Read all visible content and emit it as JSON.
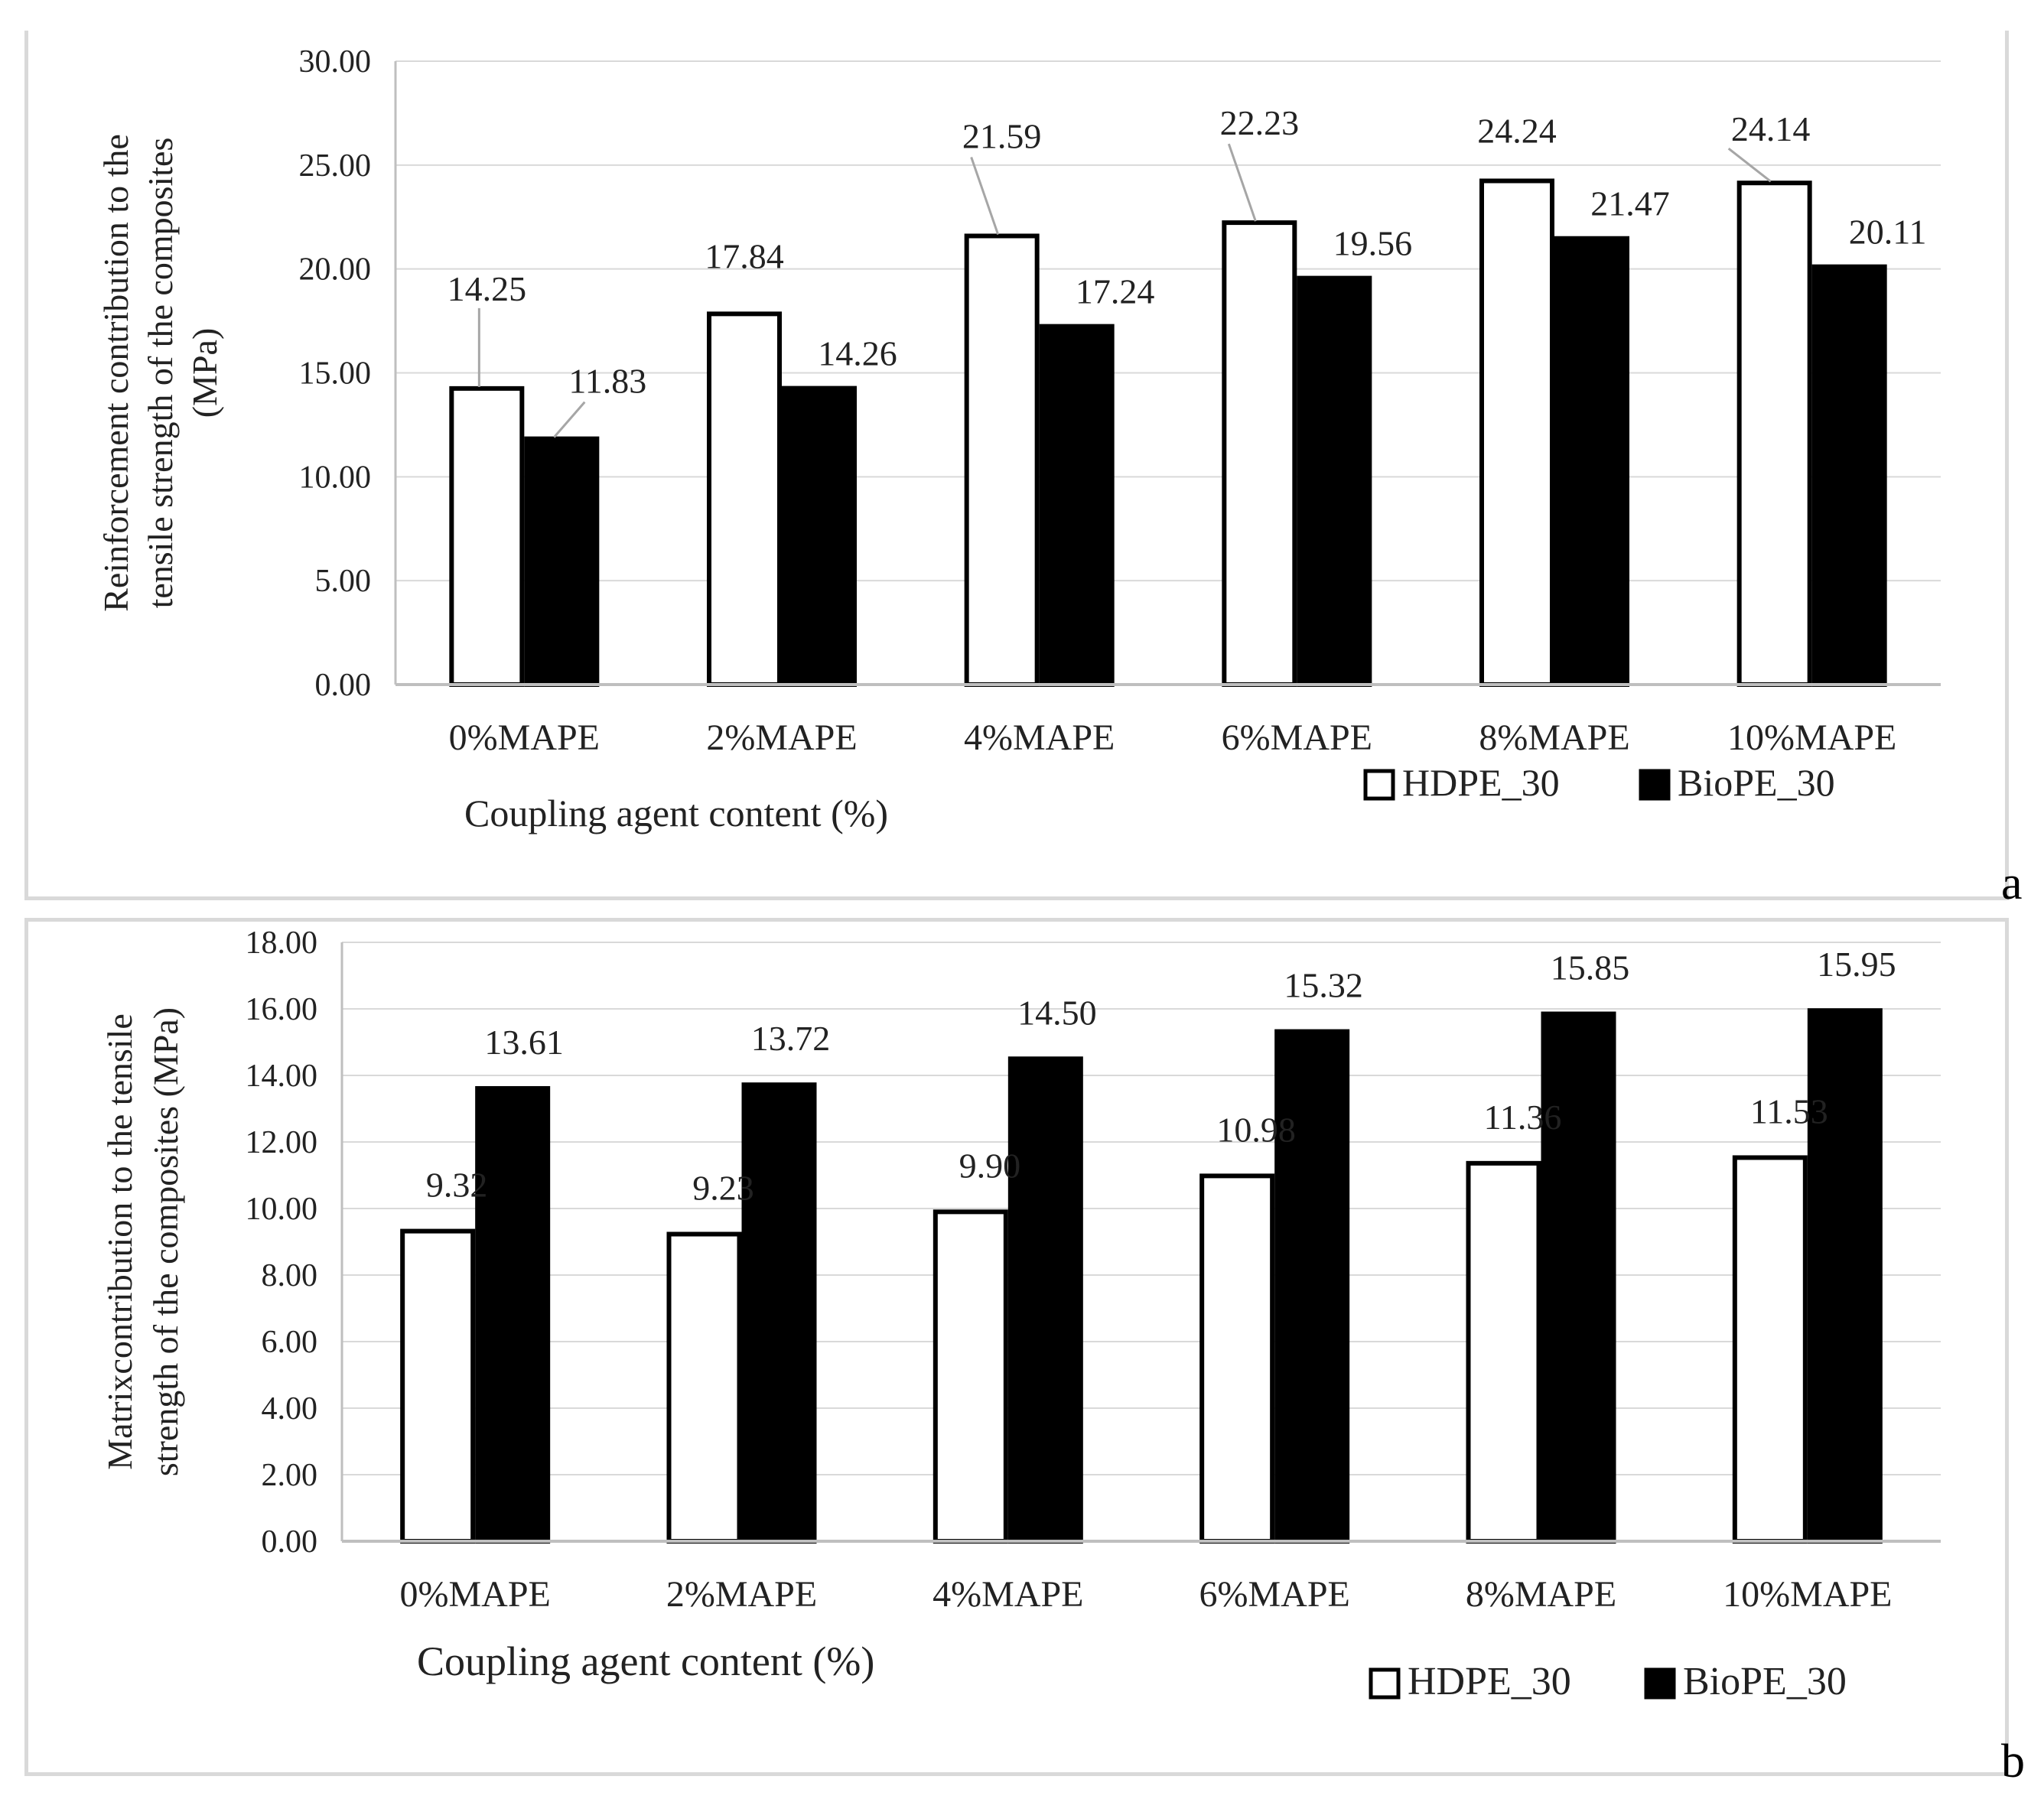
{
  "chart_data": [
    {
      "panel": "a",
      "type": "bar",
      "title": "",
      "ylabel_line1": "Reinforcement contribution to the",
      "ylabel_line2": "tensile strength of the composites",
      "ylabel_line3": "(MPa)",
      "xlabel": "Coupling agent content (%)",
      "ylim": [
        0,
        30
      ],
      "ytick_step": 5,
      "ytick_labels": [
        "0.00",
        "5.00",
        "10.00",
        "15.00",
        "20.00",
        "25.00",
        "30.00"
      ],
      "grid": true,
      "legend_position": "bottom-right",
      "categories": [
        "0%MAPE",
        "2%MAPE",
        "4%MAPE",
        "6%MAPE",
        "8%MAPE",
        "10%MAPE"
      ],
      "series": [
        {
          "name": "HDPE_30",
          "values": [
            14.25,
            17.84,
            21.59,
            22.23,
            24.24,
            24.14
          ],
          "labels": [
            "14.25",
            "17.84",
            "21.59",
            "22.23",
            "24.24",
            "24.14"
          ],
          "fill": "#ffffff",
          "stroke": "#000000"
        },
        {
          "name": "BioPE_30",
          "values": [
            11.83,
            14.26,
            17.24,
            19.56,
            21.47,
            20.11
          ],
          "labels": [
            "11.83",
            "14.26",
            "17.24",
            "19.56",
            "21.47",
            "20.11"
          ],
          "fill": "#000000",
          "stroke": "#000000"
        }
      ]
    },
    {
      "panel": "b",
      "type": "bar",
      "title": "",
      "ylabel_line1": "Matrixcontribution to the tensile",
      "ylabel_line2": "strength of the composites (MPa)",
      "ylabel_line3": "",
      "xlabel": "Coupling agent content (%)",
      "ylim": [
        0,
        18
      ],
      "ytick_step": 2,
      "ytick_labels": [
        "0.00",
        "2.00",
        "4.00",
        "6.00",
        "8.00",
        "10.00",
        "12.00",
        "14.00",
        "16.00",
        "18.00"
      ],
      "grid": true,
      "legend_position": "bottom-right",
      "categories": [
        "0%MAPE",
        "2%MAPE",
        "4%MAPE",
        "6%MAPE",
        "8%MAPE",
        "10%MAPE"
      ],
      "series": [
        {
          "name": "HDPE_30",
          "values": [
            9.32,
            9.23,
            9.9,
            10.98,
            11.36,
            11.53
          ],
          "labels": [
            "9.32",
            "9.23",
            "9.90",
            "10.98",
            "11.36",
            "11.53"
          ],
          "fill": "#ffffff",
          "stroke": "#000000"
        },
        {
          "name": "BioPE_30",
          "values": [
            13.61,
            13.72,
            14.5,
            15.32,
            15.85,
            15.95
          ],
          "labels": [
            "13.61",
            "13.72",
            "14.50",
            "15.32",
            "15.85",
            "15.95"
          ],
          "fill": "#000000",
          "stroke": "#000000"
        }
      ]
    }
  ],
  "panel_letters": [
    "a",
    "b"
  ]
}
